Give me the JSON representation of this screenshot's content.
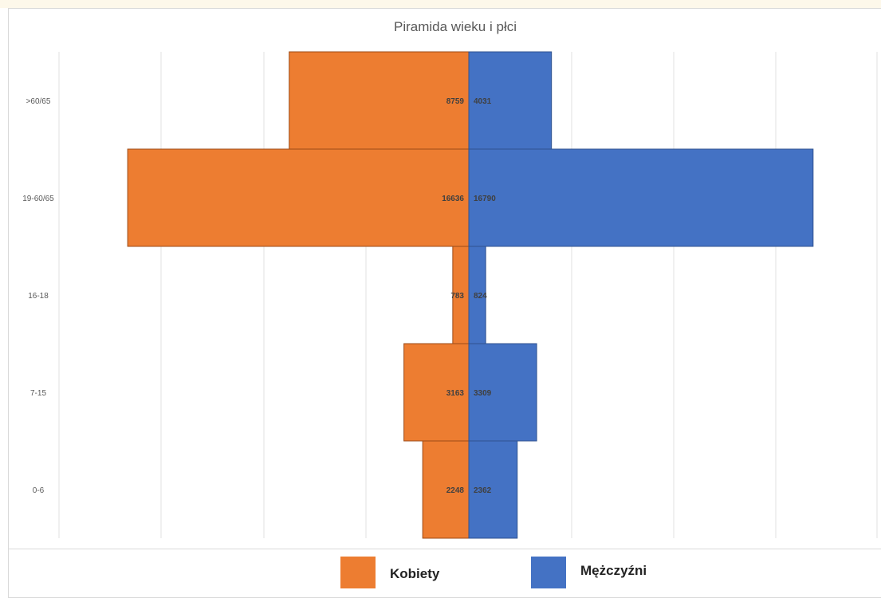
{
  "chart_data": {
    "type": "bar",
    "orientation": "horizontal",
    "title": "Piramida wieku i płci",
    "categories": [
      ">60/65",
      "19-60/65",
      "16-18",
      "7-15",
      "0-6"
    ],
    "series": [
      {
        "name": "Kobiety",
        "color": "#ed7d31",
        "values": [
          8759,
          16636,
          783,
          3163,
          2248
        ]
      },
      {
        "name": "Mężczyźni",
        "color": "#4472c4",
        "values": [
          4031,
          16790,
          824,
          3309,
          2362
        ]
      }
    ],
    "grid": true,
    "legend_position": "bottom"
  },
  "legend": {
    "kobiety": "Kobiety",
    "mezczyzni": "Mężczyźni"
  }
}
